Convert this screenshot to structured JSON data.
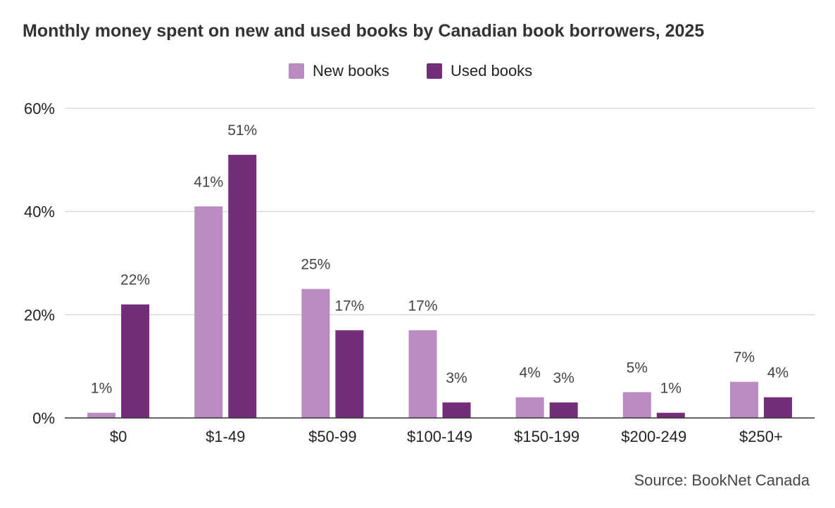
{
  "chart_data": {
    "type": "bar",
    "title": "Monthly money spent on new and used books by Canadian book borrowers, 2025",
    "categories": [
      "$0",
      "$1-49",
      "$50-99",
      "$100-149",
      "$150-199",
      "$200-249",
      "$250+"
    ],
    "series": [
      {
        "name": "New books",
        "color": "#b98bc2",
        "values": [
          1,
          41,
          25,
          17,
          4,
          5,
          7
        ]
      },
      {
        "name": "Used books",
        "color": "#722e79",
        "values": [
          22,
          51,
          17,
          3,
          3,
          1,
          4
        ]
      }
    ],
    "y_ticks": [
      "0%",
      "20%",
      "40%",
      "60%"
    ],
    "ylim": [
      0,
      60
    ],
    "grid": true,
    "legend_position": "top-center",
    "data_label_suffix": "%",
    "source": "Source: BookNet Canada"
  }
}
